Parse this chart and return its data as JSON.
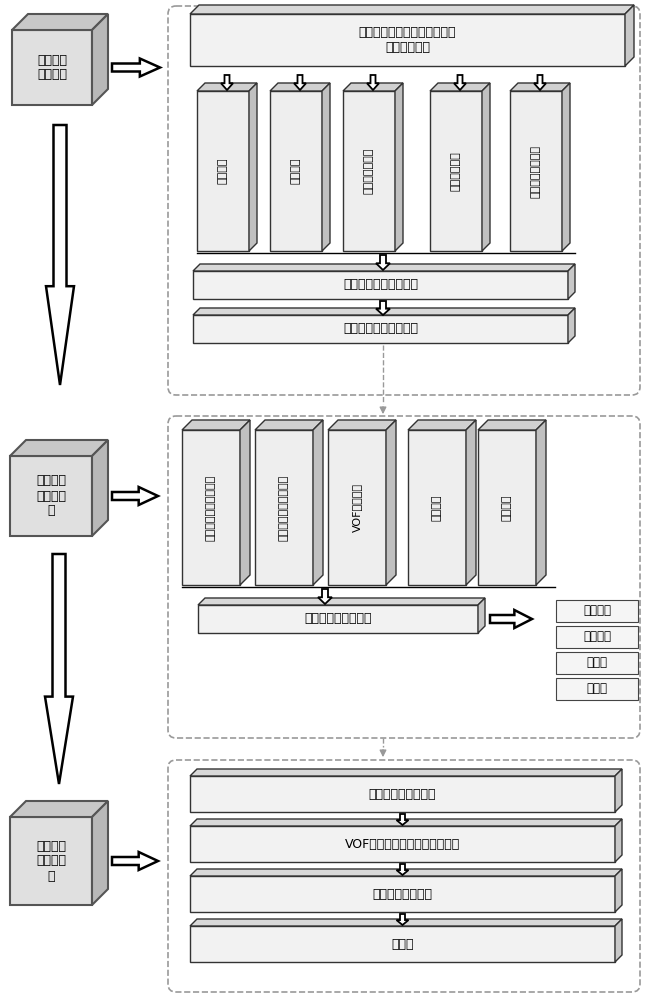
{
  "bg_color": "#ffffff",
  "section1": {
    "label": "三维精细\n地质模型",
    "top_box_text": "水利枢纽坝区多源地质数据和\n大坝设计资料",
    "column_labels": [
      "坝体模型",
      "地层模型",
      "不良地质体模型",
      "渗控结构模型",
      "三维裂隙网络模型"
    ],
    "unified_box": "三维精细地质统一模型",
    "grid_box": "三维渗流计算网格模型",
    "border": [
      170,
      8,
      468,
      385
    ]
  },
  "section2": {
    "label": "三维渗流\n场数值模\n拟",
    "column_labels": [
      "三维渗流计算网格模型",
      "三维渗流计算数学模型",
      "VOF数学模型",
      "边界条件",
      "渗透参数"
    ],
    "output_box": "土石坝枢纽区渗流场",
    "right_labels": [
      "水头分布",
      "水力梯度",
      "扬压力",
      "渗漏量"
    ],
    "border": [
      170,
      418,
      468,
      318
    ]
  },
  "section3": {
    "label": "坝体浸润\n面求解分\n析",
    "boxes": [
      "土石坝枢纽区渗流场",
      "VOF法得到水气两相的体积分数",
      "水气两相的交界面",
      "浸润面"
    ],
    "border": [
      170,
      762,
      468,
      228
    ]
  }
}
